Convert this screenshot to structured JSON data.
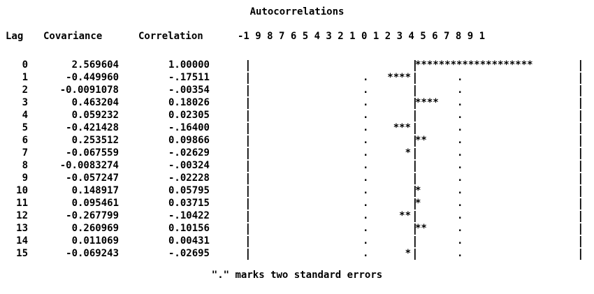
{
  "title": "Autocorrelations",
  "headers": {
    "lag": "Lag",
    "covariance": "Covariance",
    "correlation": "Correlation",
    "scale": "-1 9 8 7 6 5 4 3 2 1 0 1 2 3 4 5 6 7 8 9 1"
  },
  "rows": [
    {
      "lag": "0",
      "covariance": "2.569604",
      "correlation": "1.00000",
      "stars": "********************",
      "direction": "pos",
      "show_dots": false
    },
    {
      "lag": "1",
      "covariance": "-0.449960",
      "correlation": "-.17511",
      "stars": "****",
      "direction": "neg",
      "show_dots": true
    },
    {
      "lag": "2",
      "covariance": "-0.0091078",
      "correlation": "-.00354",
      "stars": "",
      "direction": "neg",
      "show_dots": true
    },
    {
      "lag": "3",
      "covariance": "0.463204",
      "correlation": "0.18026",
      "stars": "****",
      "direction": "pos",
      "show_dots": true
    },
    {
      "lag": "4",
      "covariance": "0.059232",
      "correlation": "0.02305",
      "stars": "",
      "direction": "pos",
      "show_dots": true
    },
    {
      "lag": "5",
      "covariance": "-0.421428",
      "correlation": "-.16400",
      "stars": "***",
      "direction": "neg",
      "show_dots": true
    },
    {
      "lag": "6",
      "covariance": "0.253512",
      "correlation": "0.09866",
      "stars": "**",
      "direction": "pos",
      "show_dots": true
    },
    {
      "lag": "7",
      "covariance": "-0.067559",
      "correlation": "-.02629",
      "stars": "*",
      "direction": "neg",
      "show_dots": true
    },
    {
      "lag": "8",
      "covariance": "-0.0083274",
      "correlation": "-.00324",
      "stars": "",
      "direction": "neg",
      "show_dots": true
    },
    {
      "lag": "9",
      "covariance": "-0.057247",
      "correlation": "-.02228",
      "stars": "",
      "direction": "neg",
      "show_dots": true
    },
    {
      "lag": "10",
      "covariance": "0.148917",
      "correlation": "0.05795",
      "stars": "*",
      "direction": "pos",
      "show_dots": true
    },
    {
      "lag": "11",
      "covariance": "0.095461",
      "correlation": "0.03715",
      "stars": "*",
      "direction": "pos",
      "show_dots": true
    },
    {
      "lag": "12",
      "covariance": "-0.267799",
      "correlation": "-.10422",
      "stars": "**",
      "direction": "neg",
      "show_dots": true
    },
    {
      "lag": "13",
      "covariance": "0.260969",
      "correlation": "0.10156",
      "stars": "**",
      "direction": "pos",
      "show_dots": true
    },
    {
      "lag": "14",
      "covariance": "0.011069",
      "correlation": "0.00431",
      "stars": "",
      "direction": "pos",
      "show_dots": true
    },
    {
      "lag": "15",
      "covariance": "-0.069243",
      "correlation": "-.02695",
      "stars": "*",
      "direction": "neg",
      "show_dots": true
    }
  ],
  "plot_symbols": {
    "bar": "|",
    "dot": "."
  },
  "footnote": "\".\" marks two standard errors"
}
